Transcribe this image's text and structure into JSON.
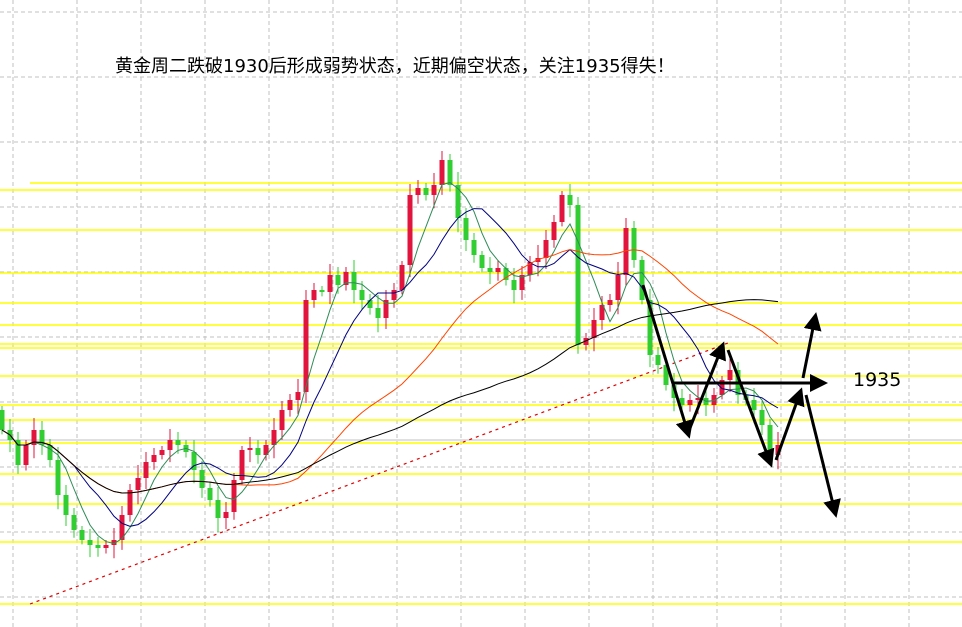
{
  "chart_data": {
    "type": "candlestick",
    "title": "黄金周二跌破1930后形成弱势状态，近期偏空状态，关注1935得失！",
    "annotation_level_label": "1935",
    "annotation_level": 1935,
    "colors": {
      "up": "#e0143c",
      "down": "#32cd32",
      "ma_fast": "#2e8b57",
      "ma_mid": "#000080",
      "ma_slow": "#ff4500",
      "ma_long": "#000000",
      "levels": "#ffff00",
      "trendline": "#e00000",
      "current_price": "#c0c0c0"
    },
    "grid": true,
    "first_open": 1932.0,
    "close": [
      1930.0,
      1929.0,
      1926.5,
      1928.5,
      1930.0,
      1928.5,
      1927.0,
      1923.5,
      1921.5,
      1920.0,
      1919.0,
      1918.5,
      1918.2,
      1918.5,
      1919.0,
      1921.5,
      1924.0,
      1925.2,
      1926.8,
      1927.5,
      1928.0,
      1929.0,
      1928.5,
      1927.8,
      1926.0,
      1924.2,
      1923.0,
      1921.2,
      1921.8,
      1925.0,
      1928.0,
      1928.2,
      1927.5,
      1928.5,
      1930.0,
      1932.0,
      1933.0,
      1933.8,
      1943.0,
      1944.0,
      1943.8,
      1945.5,
      1944.5,
      1945.8,
      1944.0,
      1943.0,
      1942.2,
      1941.2,
      1943.0,
      1944.0,
      1946.5,
      1953.5,
      1954.2,
      1953.5,
      1954.5,
      1957.0,
      1954.5,
      1951.2,
      1949.0,
      1947.5,
      1946.2,
      1945.8,
      1946.2,
      1945.0,
      1944.0,
      1945.5,
      1946.8,
      1947.2,
      1949.0,
      1950.8,
      1953.5,
      1952.5,
      1938.5,
      1939.2,
      1941.0,
      1942.5,
      1943.0,
      1945.5,
      1950.2,
      1947.0,
      1943.0,
      1937.5,
      1936.5,
      1934.5,
      1933.2,
      1932.5,
      1933.0,
      1933.2,
      1932.5,
      1933.5,
      1935.0,
      1936.0,
      1933.5,
      1933.0,
      1932.0,
      1930.5,
      1927.5,
      1928.5
    ],
    "horizontal_levels": [
      1954.7,
      1954.0,
      1950.0,
      1945.7,
      1942.7,
      1940.5,
      1938.6,
      1938.2,
      1935.4,
      1932.5,
      1931.0,
      1928.7,
      1925.6,
      1922.6,
      1918.8,
      1912.6
    ],
    "current_price": 1929.0,
    "trendline": {
      "from": 1912.6,
      "to": 1938.7
    },
    "ma_periods": [
      5,
      10,
      30,
      60
    ]
  }
}
